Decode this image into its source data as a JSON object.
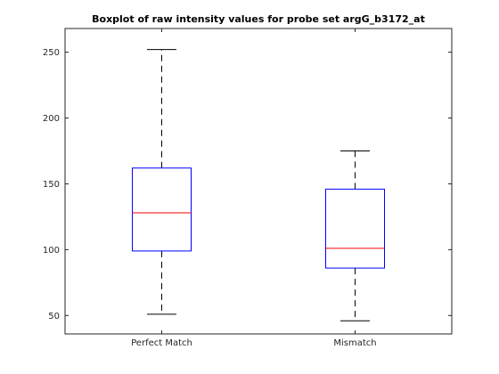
{
  "chart_data": {
    "type": "box",
    "title": "Boxplot of raw intensity values for probe set argG_b3172_at",
    "xlabel": "",
    "ylabel": "",
    "categories": [
      "Perfect Match",
      "Mismatch"
    ],
    "boxes": [
      {
        "name": "Perfect Match",
        "whisker_low": 51,
        "q1": 99,
        "median": 128,
        "q3": 162,
        "whisker_high": 252
      },
      {
        "name": "Mismatch",
        "whisker_low": 46,
        "q1": 86,
        "median": 101,
        "q3": 146,
        "whisker_high": 175
      }
    ],
    "ylim": [
      36,
      268
    ],
    "yticks": [
      50,
      100,
      150,
      200,
      250
    ],
    "ytick_labels": [
      "50",
      "100",
      "150",
      "200",
      "250"
    ],
    "grid": false,
    "colors": {
      "box": "#0000ff",
      "median": "#ff0000",
      "whisker": "#000000",
      "axis": "#262626"
    }
  }
}
